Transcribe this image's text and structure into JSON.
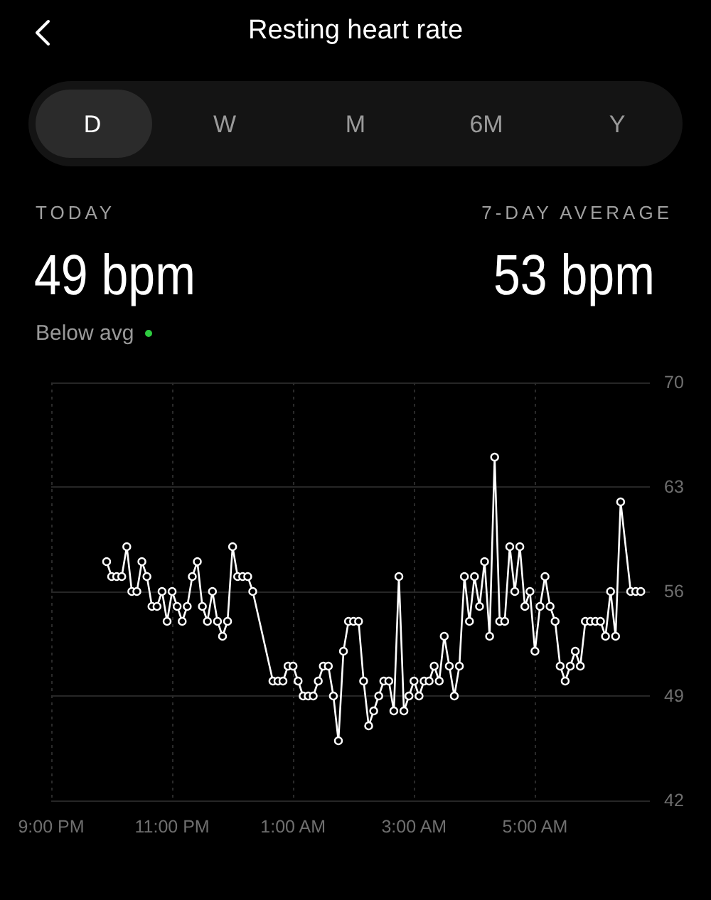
{
  "chart_data": {
    "type": "line",
    "title": "Resting heart rate",
    "annotations": [
      "D",
      "W",
      "M",
      "6M",
      "Y",
      "TODAY",
      "49 bpm",
      "Below avg",
      "7-DAY AVERAGE",
      "53 bpm"
    ],
    "series": [
      {
        "color": "#ffffff",
        "x": [
          "--01-01T21:55",
          "--01-01T22:00",
          "--01-01T22:05",
          "--01-01T22:10",
          "--01-01T22:15",
          "--01-01T22:20",
          "--01-01T22:25",
          "--01-01T22:30",
          "--01-01T22:35",
          "--01-01T22:40",
          "--01-01T22:45",
          "--01-01T22:50",
          "--01-01T22:55",
          "--01-01T23:00",
          "--01-01T23:05",
          "--01-01T23:10",
          "--01-01T23:15",
          "--01-01T23:20",
          "--01-01T23:25",
          "--01-01T23:30",
          "--01-01T23:35",
          "--01-01T23:40",
          "--01-01T23:45",
          "--01-01T23:50",
          "--01-01T23:55",
          "--01-02T00:00",
          "--01-02T00:05",
          "--01-02T00:10",
          "--01-02T00:15",
          "--01-02T00:20",
          "--01-02T00:40",
          "--01-02T00:45",
          "--01-02T00:50",
          "--01-02T00:55",
          "--01-02T01:00",
          "--01-02T01:05",
          "--01-02T01:10",
          "--01-02T01:15",
          "--01-02T01:20",
          "--01-02T01:25",
          "--01-02T01:30",
          "--01-02T01:35",
          "--01-02T01:40",
          "--01-02T01:45",
          "--01-02T01:50",
          "--01-02T01:55",
          "--01-02T02:00",
          "--01-02T02:05",
          "--01-02T02:10",
          "--01-02T02:15",
          "--01-02T02:20",
          "--01-02T02:25",
          "--01-02T02:30",
          "--01-02T02:35",
          "--01-02T02:40",
          "--01-02T02:45",
          "--01-02T02:50",
          "--01-02T02:55",
          "--01-02T03:00",
          "--01-02T03:05",
          "--01-02T03:10",
          "--01-02T03:15",
          "--01-02T03:20",
          "--01-02T03:25",
          "--01-02T03:30",
          "--01-02T03:35",
          "--01-02T03:40",
          "--01-02T03:45",
          "--01-02T03:50",
          "--01-02T03:55",
          "--01-02T04:00",
          "--01-02T04:05",
          "--01-02T04:10",
          "--01-02T04:15",
          "--01-02T04:20",
          "--01-02T04:25",
          "--01-02T04:30",
          "--01-02T04:35",
          "--01-02T04:40",
          "--01-02T04:45",
          "--01-02T04:50",
          "--01-02T04:55",
          "--01-02T05:00",
          "--01-02T05:05",
          "--01-02T05:10",
          "--01-02T05:15",
          "--01-02T05:20",
          "--01-02T05:25",
          "--01-02T05:30",
          "--01-02T05:35",
          "--01-02T05:40",
          "--01-02T05:45",
          "--01-02T05:50",
          "--01-02T05:55",
          "--01-02T06:00",
          "--01-02T06:05",
          "--01-02T06:10",
          "--01-02T06:15",
          "--01-02T06:20",
          "--01-02T06:25",
          "--01-02T06:35",
          "--01-02T06:40",
          "--01-02T06:45"
        ],
        "values": [
          58,
          57,
          57,
          57,
          59,
          56,
          56,
          58,
          57,
          55,
          55,
          56,
          54,
          56,
          55,
          54,
          55,
          57,
          58,
          55,
          54,
          56,
          54,
          53,
          54,
          59,
          57,
          57,
          57,
          56,
          50,
          50,
          50,
          51,
          51,
          50,
          49,
          49,
          49,
          50,
          51,
          51,
          49,
          46,
          52,
          54,
          54,
          54,
          50,
          47,
          48,
          49,
          50,
          50,
          48,
          57,
          48,
          49,
          50,
          49,
          50,
          50,
          51,
          50,
          53,
          51,
          49,
          51,
          57,
          54,
          57,
          55,
          58,
          53,
          65,
          54,
          54,
          59,
          56,
          59,
          55,
          56,
          52,
          55,
          57,
          55,
          54,
          51,
          50,
          51,
          52,
          51,
          54,
          54,
          54,
          54,
          53,
          56,
          53,
          62,
          56,
          56,
          56
        ]
      }
    ],
    "xlim": [
      "--01-01T21:00",
      "--01-02T06:54"
    ],
    "xticks": [
      {
        "value": "--01-01T21:00",
        "label": "9:00 PM"
      },
      {
        "value": "--01-01T23:00",
        "label": "11:00 PM"
      },
      {
        "value": "--01-02T01:00",
        "label": "1:00 AM"
      },
      {
        "value": "--01-02T03:00",
        "label": "3:00 AM"
      },
      {
        "value": "--01-02T05:00",
        "label": "5:00 AM"
      }
    ],
    "ylim": [
      42,
      70
    ],
    "yticks": [
      42,
      49,
      56,
      63,
      70
    ],
    "grid": true,
    "marker": "circle",
    "line_style": "solid"
  }
}
